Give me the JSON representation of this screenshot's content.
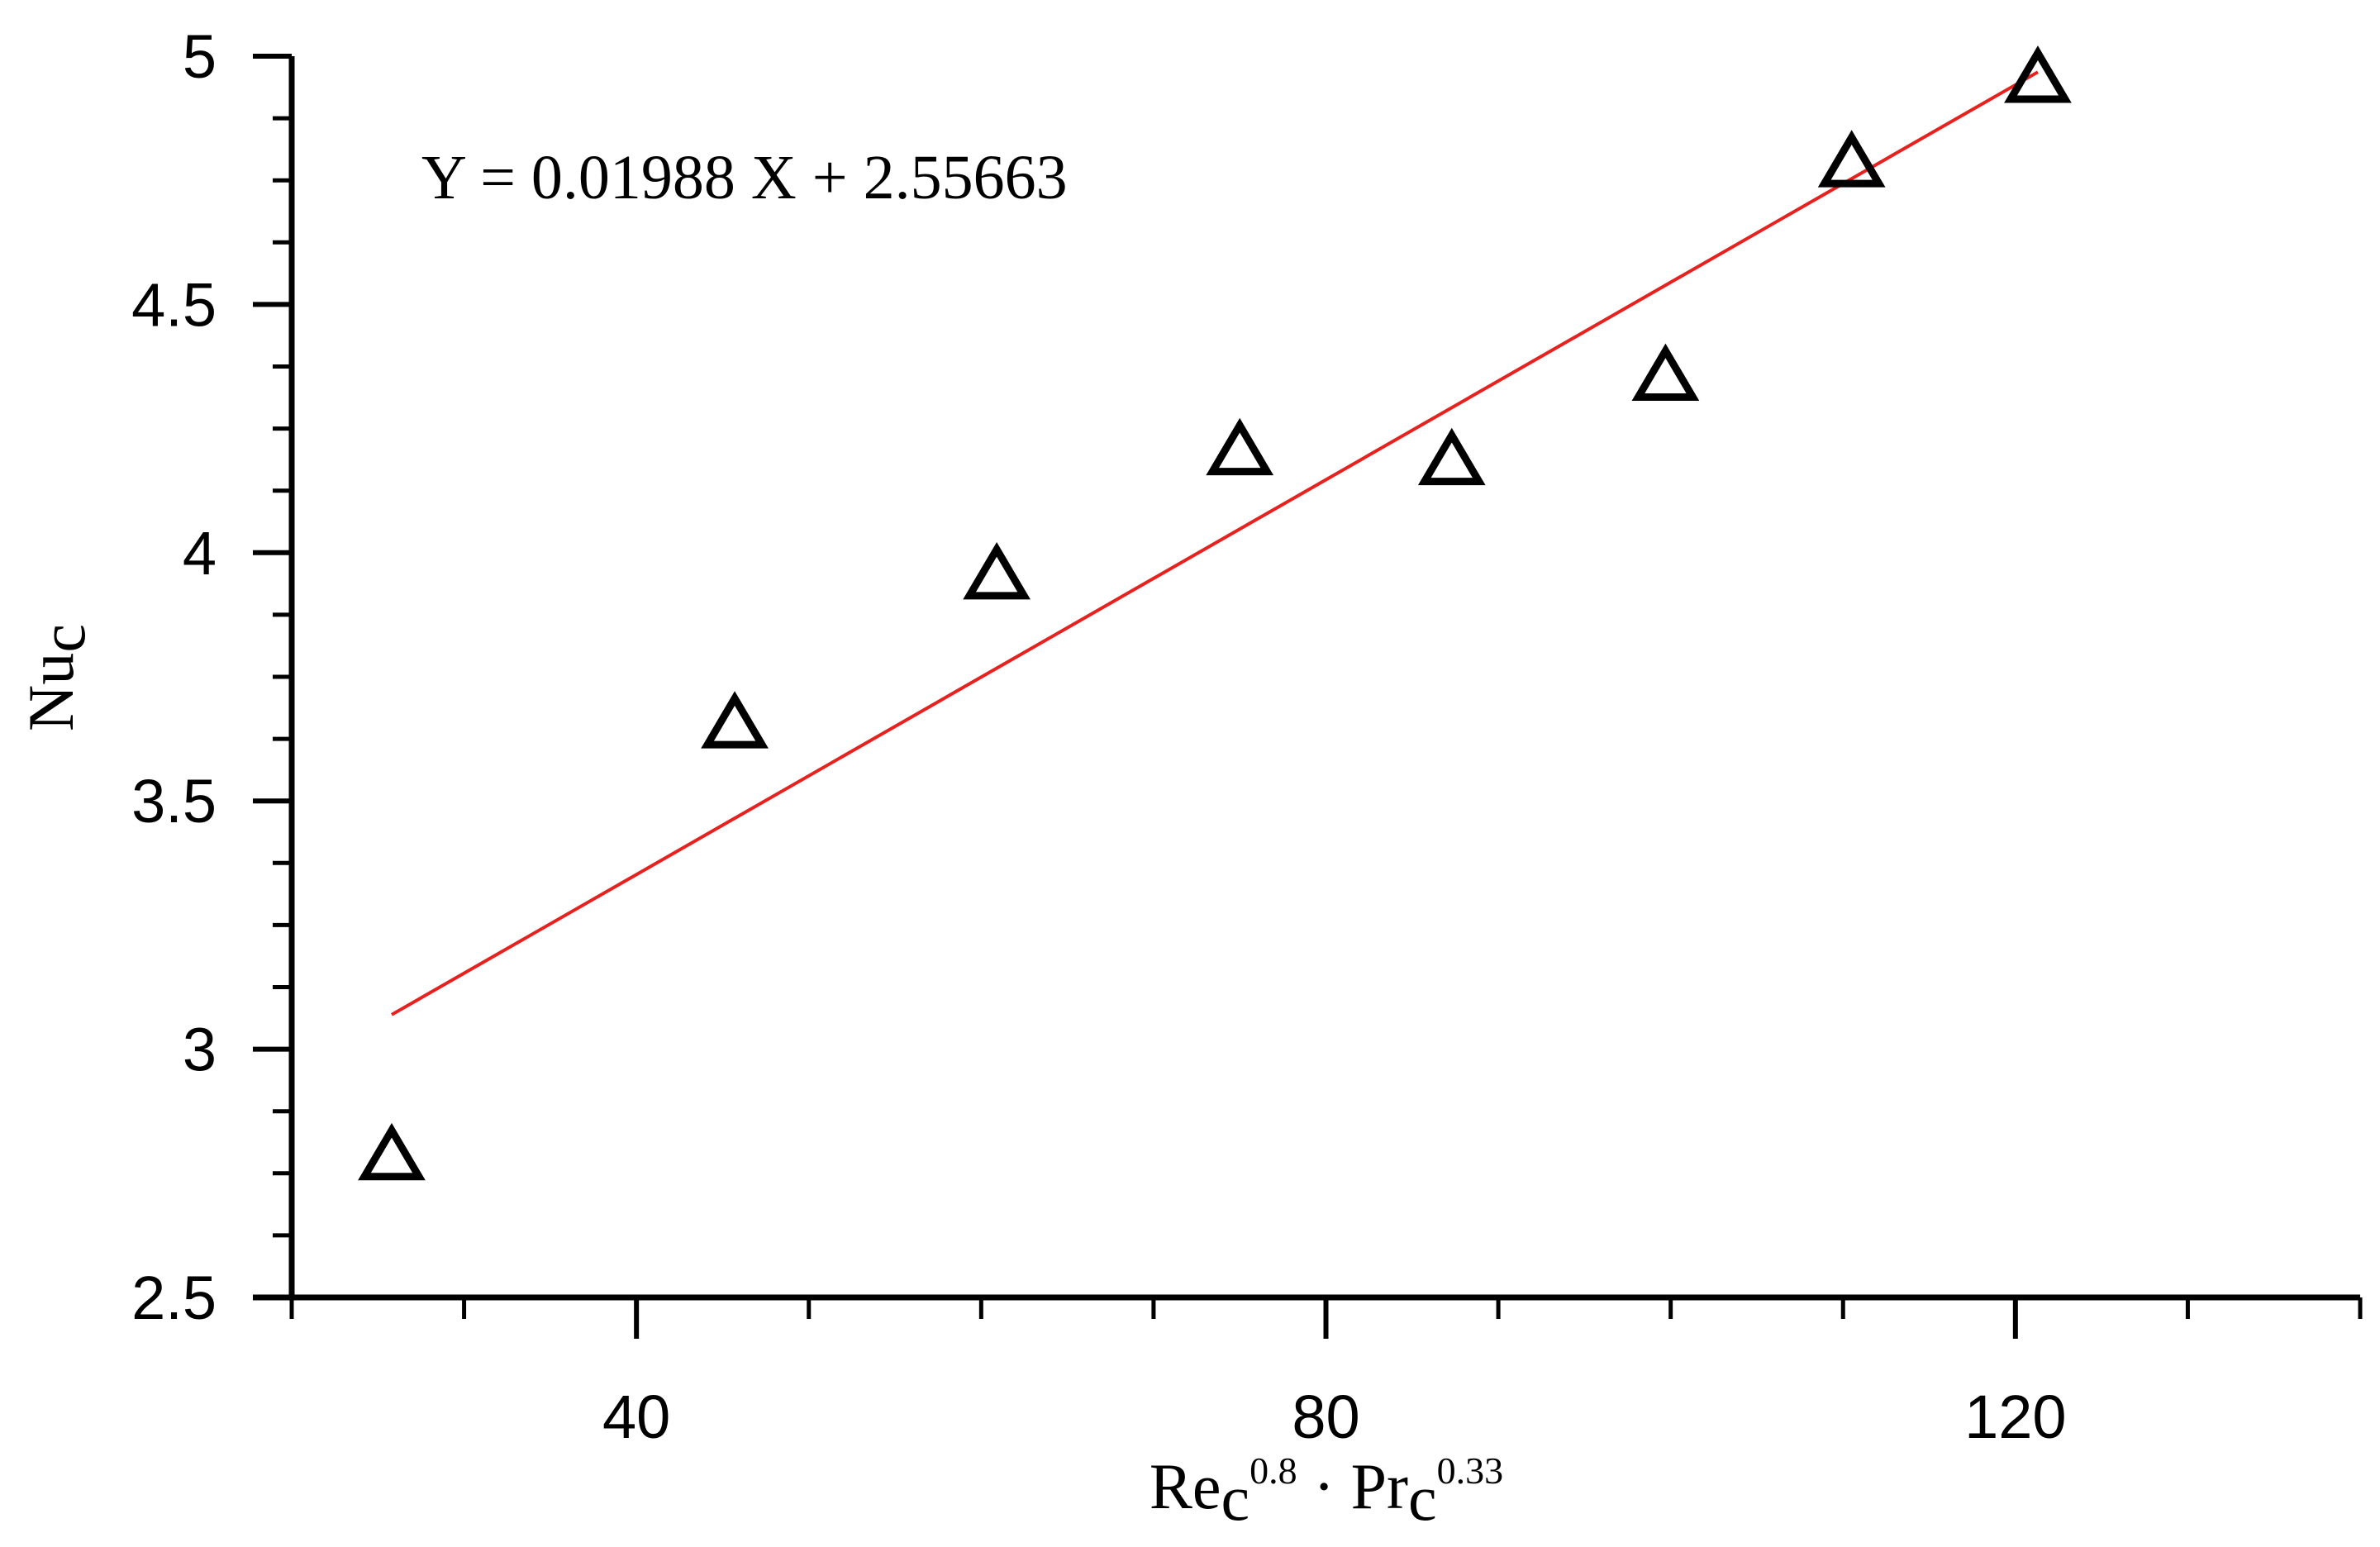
{
  "chart_data": {
    "type": "scatter",
    "title": "",
    "equation": "Y = 0.01988 X + 2.55663",
    "xlabel": {
      "base1": "Re",
      "sub1": "c",
      "sup1": "0.8",
      "dot": " · ",
      "base2": "Pr",
      "sub2": "c",
      "sup2": "0.33"
    },
    "ylabel": {
      "base": "Nu",
      "sub": "c"
    },
    "xlim": [
      20,
      140
    ],
    "ylim": [
      2.5,
      5
    ],
    "x_ticks": [
      40,
      80,
      120
    ],
    "x_tick_labels": [
      "40",
      "80",
      "120"
    ],
    "x_minor_ticks": [
      20,
      30,
      50,
      60,
      70,
      90,
      100,
      110,
      130,
      140
    ],
    "y_ticks": [
      2.5,
      3,
      3.5,
      4,
      4.5,
      5
    ],
    "y_tick_labels": [
      "2.5",
      "3",
      "3.5",
      "4",
      "4.5",
      "5"
    ],
    "y_minor_ticks": [
      2.625,
      2.75,
      2.875,
      3.125,
      3.25,
      3.375,
      3.625,
      3.75,
      3.875,
      4.125,
      4.25,
      4.375,
      4.625,
      4.75,
      4.875
    ],
    "grid": false,
    "series": [
      {
        "marker": "open-triangle",
        "color": "#000000",
        "x": [
          25.8,
          45.7,
          60.9,
          75.0,
          87.3,
          99.7,
          110.5,
          121.3
        ],
        "y": [
          2.79,
          3.66,
          3.96,
          4.21,
          4.19,
          4.36,
          4.79,
          4.96
        ]
      }
    ],
    "fit": {
      "slope": 0.01988,
      "intercept": 2.55663,
      "x_range": [
        25.8,
        121.3
      ],
      "color": "#e8201e"
    }
  }
}
